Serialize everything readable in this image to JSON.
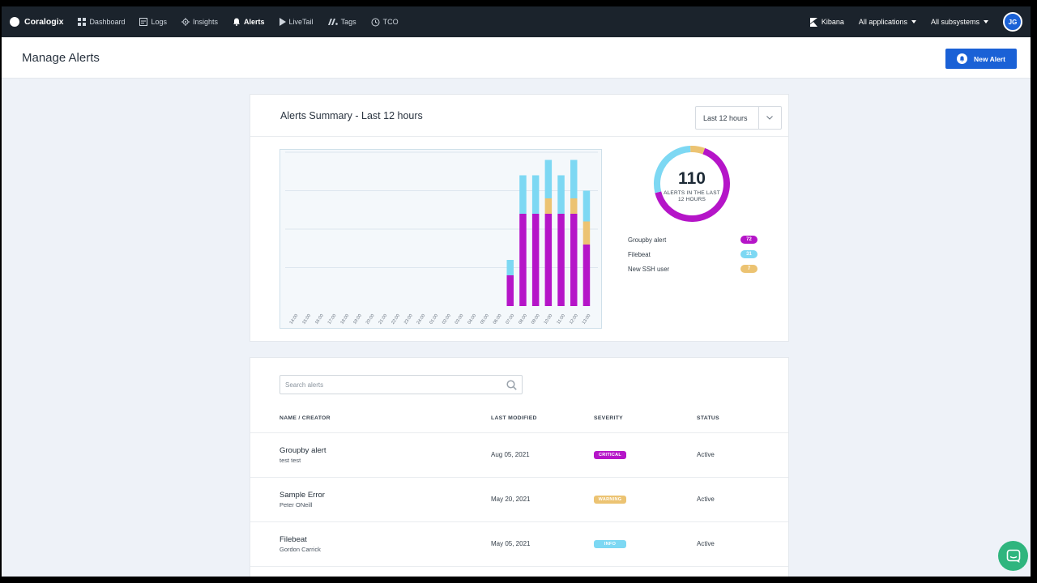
{
  "nav": {
    "brand": "Coralogix",
    "items": [
      {
        "label": "Dashboard",
        "icon": "grid-icon"
      },
      {
        "label": "Logs",
        "icon": "logs-icon"
      },
      {
        "label": "Insights",
        "icon": "insights-icon"
      },
      {
        "label": "Alerts",
        "icon": "bell-icon"
      },
      {
        "label": "LiveTail",
        "icon": "play-icon"
      },
      {
        "label": "Tags",
        "icon": "tags-icon"
      },
      {
        "label": "TCO",
        "icon": "tco-icon"
      }
    ],
    "kibana": "Kibana",
    "applications": "All applications",
    "subsystems": "All subsystems",
    "user_initials": "JG"
  },
  "header": {
    "title": "Manage Alerts",
    "new_alert_label": "New Alert"
  },
  "summary": {
    "title": "Alerts Summary - Last 12 hours",
    "range_label": "Last 12 hours",
    "total": "110",
    "total_caption": "ALERTS IN THE LAST 12 HOURS",
    "legend": [
      {
        "name": "Groupby alert",
        "count": "72",
        "color": "#b515c8"
      },
      {
        "name": "Filebeat",
        "count": "31",
        "color": "#7dd8f3"
      },
      {
        "name": "New SSH user",
        "count": "7",
        "color": "#ecc372"
      }
    ]
  },
  "chart_data": {
    "type": "bar",
    "stacked": true,
    "categories": [
      "14:00",
      "15:00",
      "16:00",
      "17:00",
      "18:00",
      "19:00",
      "20:00",
      "21:00",
      "22:00",
      "23:00",
      "24:00",
      "01:00",
      "02:00",
      "03:00",
      "04:00",
      "05:00",
      "06:00",
      "07:00",
      "08:00",
      "09:00",
      "10:00",
      "11:00",
      "12:00",
      "13:00"
    ],
    "series": [
      {
        "name": "Groupby alert",
        "color": "#b515c8",
        "values": [
          0,
          0,
          0,
          0,
          0,
          0,
          0,
          0,
          0,
          0,
          0,
          0,
          0,
          0,
          0,
          0,
          0,
          2,
          6,
          6,
          6,
          6,
          6,
          4
        ]
      },
      {
        "name": "New SSH user",
        "color": "#ecc372",
        "values": [
          0,
          0,
          0,
          0,
          0,
          0,
          0,
          0,
          0,
          0,
          0,
          0,
          0,
          0,
          0,
          0,
          0,
          0,
          0,
          0,
          1,
          0,
          1,
          1.5
        ]
      },
      {
        "name": "Filebeat",
        "color": "#7dd8f3",
        "values": [
          0,
          0,
          0,
          0,
          0,
          0,
          0,
          0,
          0,
          0,
          0,
          0,
          0,
          0,
          0,
          0,
          0,
          1,
          2.5,
          2.5,
          2.5,
          2.5,
          2.5,
          2
        ]
      }
    ],
    "ylim": [
      0,
      10
    ],
    "grid": true
  },
  "alerts_list": {
    "search_placeholder": "Search alerts",
    "columns": [
      "NAME / CREATOR",
      "LAST MODIFIED",
      "SEVERITY",
      "STATUS"
    ],
    "rows": [
      {
        "name": "Groupby alert",
        "creator": "test test",
        "modified": "Aug 05, 2021",
        "severity": "CRITICAL",
        "severity_color": "#b515c8",
        "status": "Active"
      },
      {
        "name": "Sample Error",
        "creator": "Peter ONeill",
        "modified": "May 20, 2021",
        "severity": "WARNING",
        "severity_color": "#ecc372",
        "status": "Active"
      },
      {
        "name": "Filebeat",
        "creator": "Gordon Carrick",
        "modified": "May 05, 2021",
        "severity": "INFO",
        "severity_color": "#7dd8f3",
        "status": "Active"
      }
    ]
  }
}
